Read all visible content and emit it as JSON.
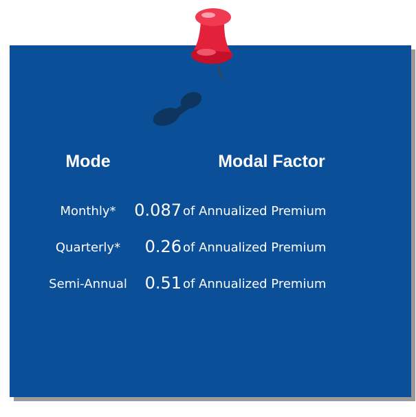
{
  "table": {
    "header": [
      "Mode",
      "Modal Factor"
    ],
    "rows": [
      [
        "Monthly*",
        "0.087",
        "of Annualized Premium"
      ],
      [
        "Quarterly*",
        "0.26",
        "of Annualized Premium"
      ],
      [
        "Semi-Annual",
        "0.51",
        "of Annualized Premium"
      ]
    ]
  }
}
